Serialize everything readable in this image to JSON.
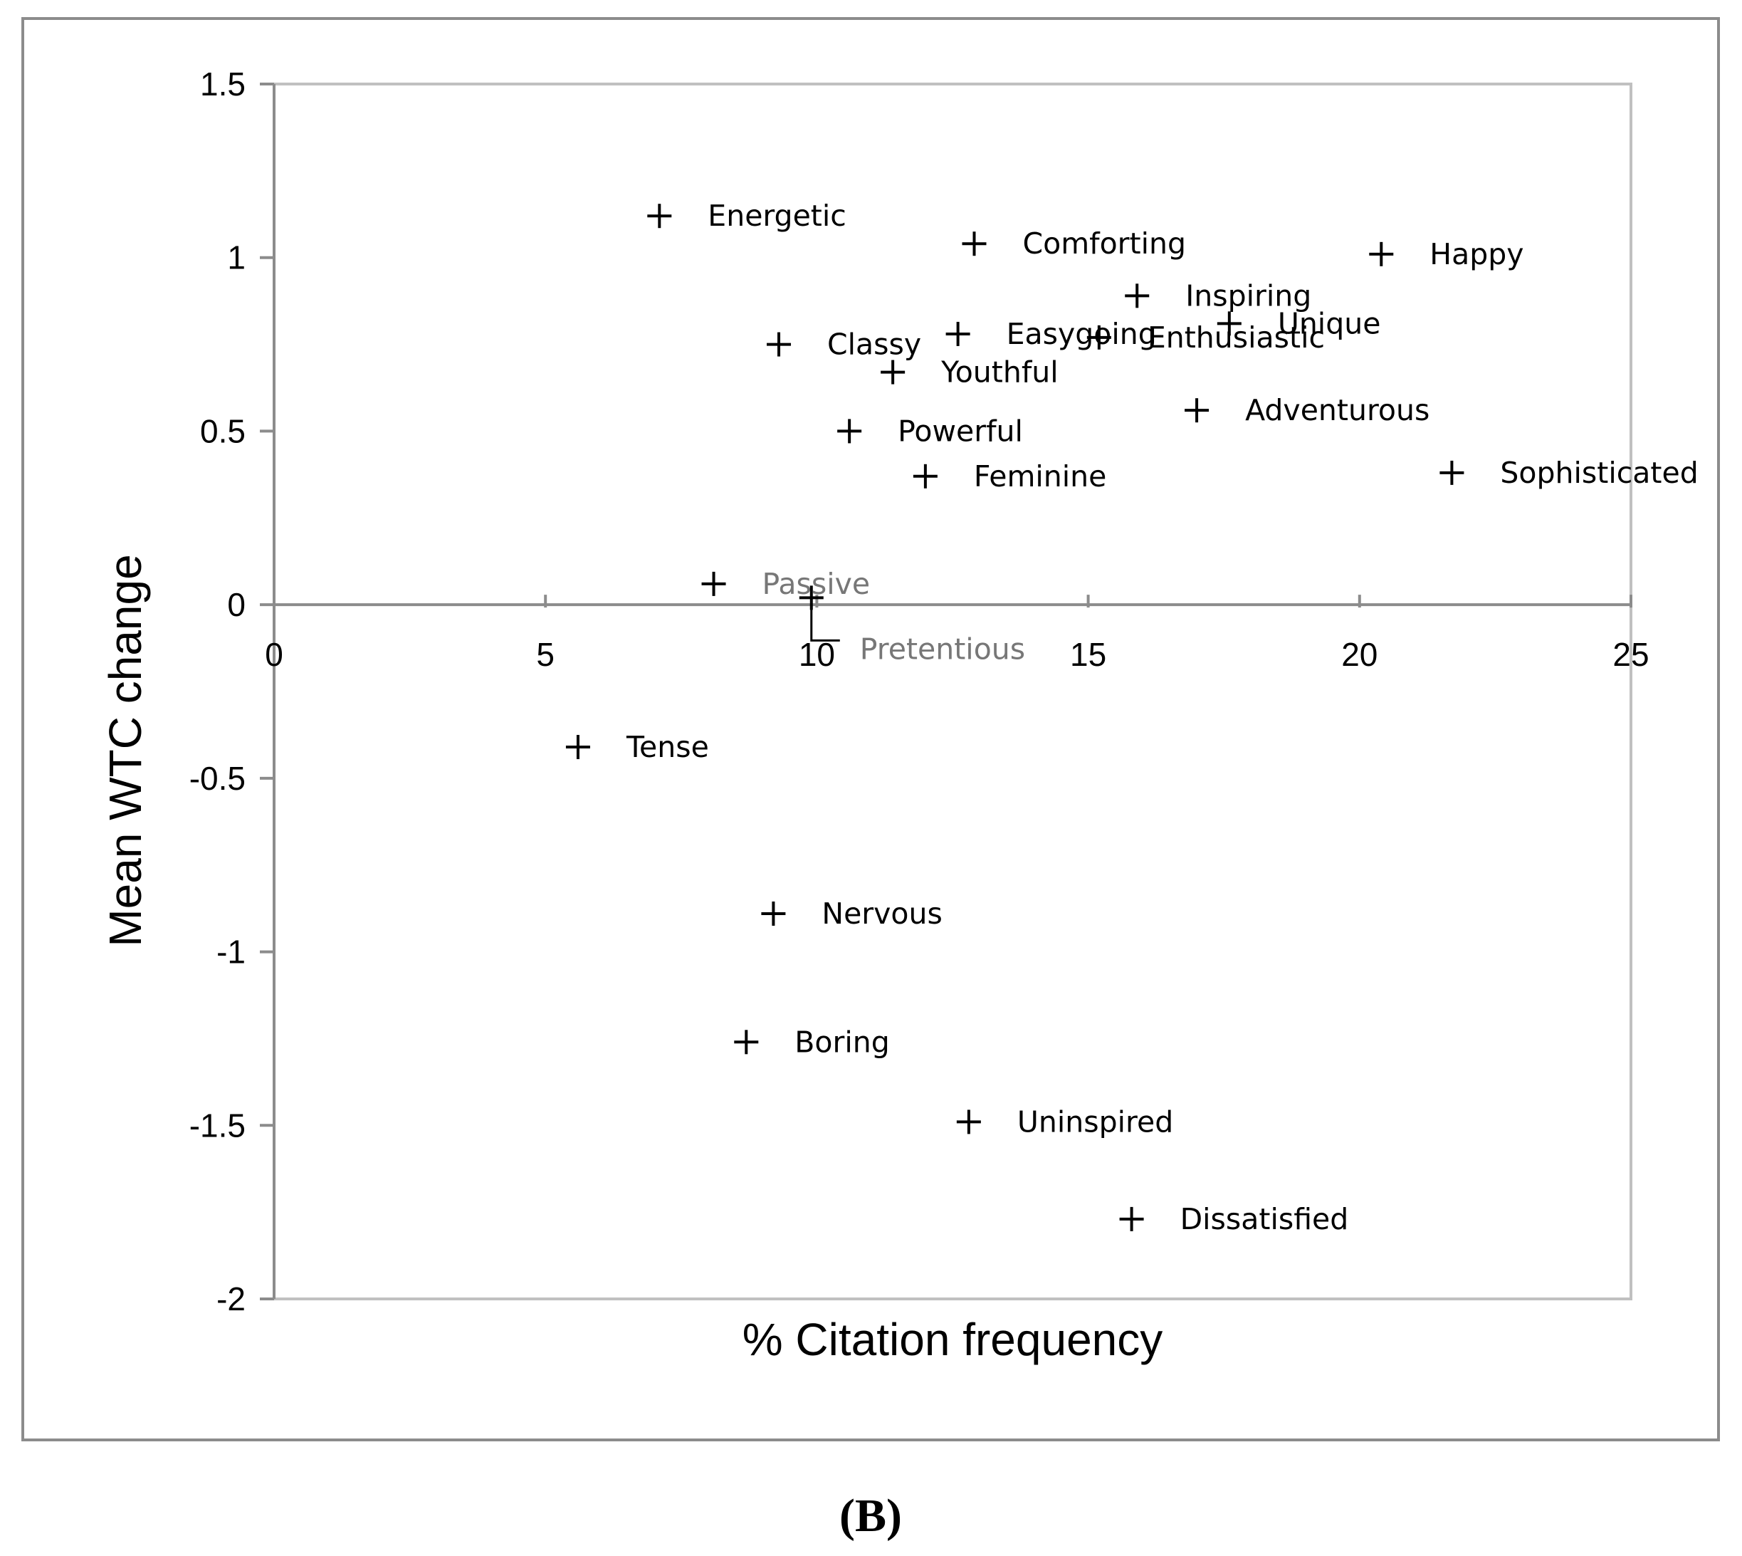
{
  "panel_label": "(B)",
  "chart_data": {
    "type": "scatter",
    "title": "",
    "xlabel": "% Citation frequency",
    "ylabel": "Mean WTC change",
    "xlim": [
      0,
      25
    ],
    "ylim": [
      -2,
      1.5
    ],
    "x_ticks": [
      0,
      5,
      10,
      15,
      20,
      25
    ],
    "y_ticks": [
      1.5,
      1,
      0.5,
      0,
      -0.5,
      -1,
      -1.5,
      -2
    ],
    "grid": false,
    "points": [
      {
        "label": "Energetic",
        "x": 7.1,
        "y": 1.12
      },
      {
        "label": "Comforting",
        "x": 12.9,
        "y": 1.04
      },
      {
        "label": "Happy",
        "x": 20.4,
        "y": 1.01
      },
      {
        "label": "Inspiring",
        "x": 15.9,
        "y": 0.89
      },
      {
        "label": "Unique",
        "x": 17.6,
        "y": 0.81
      },
      {
        "label": "Easygoing",
        "x": 12.6,
        "y": 0.78
      },
      {
        "label": "Enthusiastic",
        "x": 15.2,
        "y": 0.77
      },
      {
        "label": "Classy",
        "x": 9.3,
        "y": 0.75
      },
      {
        "label": "Youthful",
        "x": 11.4,
        "y": 0.67
      },
      {
        "label": "Adventurous",
        "x": 17.0,
        "y": 0.56
      },
      {
        "label": "Powerful",
        "x": 10.6,
        "y": 0.5
      },
      {
        "label": "Sophisticated",
        "x": 21.7,
        "y": 0.38
      },
      {
        "label": "Feminine",
        "x": 12.0,
        "y": 0.37
      },
      {
        "label": "Passive",
        "x": 8.1,
        "y": 0.06
      },
      {
        "label": "Pretentious",
        "x": 9.9,
        "y": 0.02
      },
      {
        "label": "Tense",
        "x": 5.6,
        "y": -0.41
      },
      {
        "label": "Nervous",
        "x": 9.2,
        "y": -0.89
      },
      {
        "label": "Boring",
        "x": 8.7,
        "y": -1.26
      },
      {
        "label": "Uninspired",
        "x": 12.8,
        "y": -1.49
      },
      {
        "label": "Dissatisfied",
        "x": 15.8,
        "y": -1.77
      }
    ]
  }
}
